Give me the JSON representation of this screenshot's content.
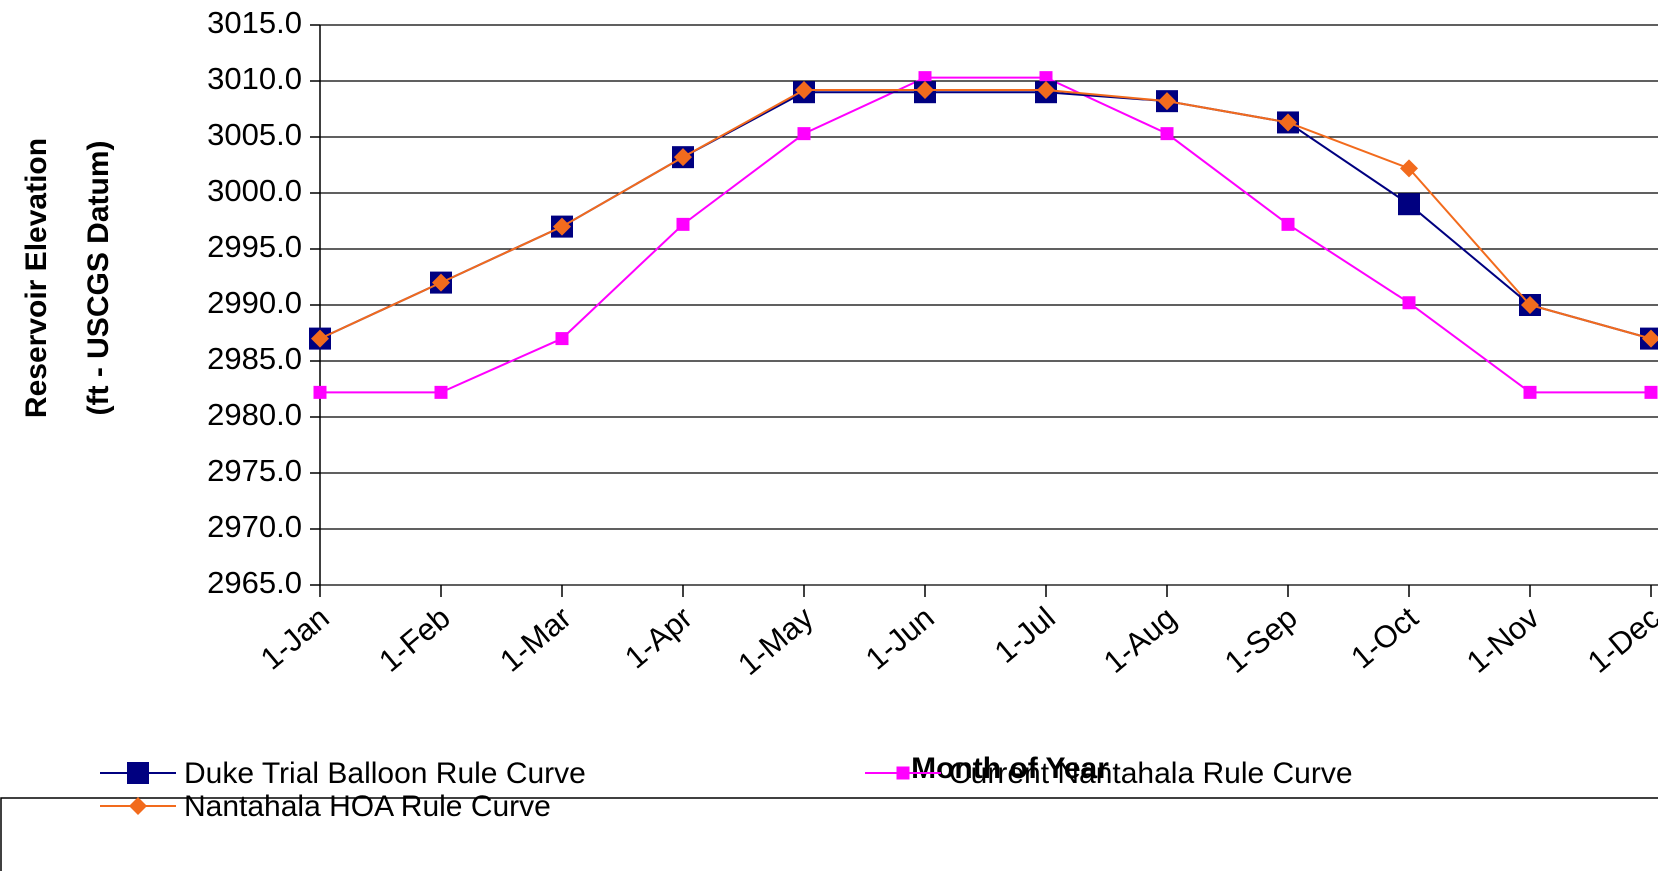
{
  "chart_data": {
    "type": "line",
    "x_label": "Month of Year",
    "y_label": [
      "Reservoir Elevation",
      "(ft - USCGS Datum)"
    ],
    "categories": [
      "1-Jan",
      "1-Feb",
      "1-Mar",
      "1-Apr",
      "1-May",
      "1-Jun",
      "1-Jul",
      "1-Aug",
      "1-Sep",
      "1-Oct",
      "1-Nov",
      "1-Dec"
    ],
    "series": [
      {
        "name": "Duke Trial Balloon Rule Curve",
        "color": "#000080",
        "marker": "square",
        "values": [
          2987,
          2992,
          2997,
          3003.2,
          3009,
          3009,
          3009,
          3008.2,
          3006.3,
          2999,
          2990,
          2987
        ]
      },
      {
        "name": "Current Nantahala Rule Curve",
        "color": "#ff00ff",
        "marker": "small-square",
        "values": [
          2982.2,
          2982.2,
          2987,
          2997.2,
          3005.3,
          3010.3,
          3010.3,
          3005.3,
          2997.2,
          2990.2,
          2982.2,
          2982.2
        ]
      },
      {
        "name": "Nantahala HOA Rule Curve",
        "color": "#f26b1d",
        "marker": "diamond",
        "values": [
          2987,
          2992,
          2997,
          3003.2,
          3009.2,
          3009.2,
          3009.2,
          3008.2,
          3006.3,
          3002.2,
          2990,
          2987
        ]
      }
    ],
    "ylim": [
      2965,
      3015
    ],
    "yticks": [
      {
        "value": 2965,
        "label": "2965.0"
      },
      {
        "value": 2970,
        "label": "2970.0"
      },
      {
        "value": 2975,
        "label": "2975.0"
      },
      {
        "value": 2980,
        "label": "2980.0"
      },
      {
        "value": 2985,
        "label": "2985.0"
      },
      {
        "value": 2990,
        "label": "2990.0"
      },
      {
        "value": 2995,
        "label": "2995.0"
      },
      {
        "value": 3000,
        "label": "3000.0"
      },
      {
        "value": 3005,
        "label": "3005.0"
      },
      {
        "value": 3010,
        "label": "3010.0"
      },
      {
        "value": 3015,
        "label": "3015.0"
      }
    ],
    "grid": true
  }
}
